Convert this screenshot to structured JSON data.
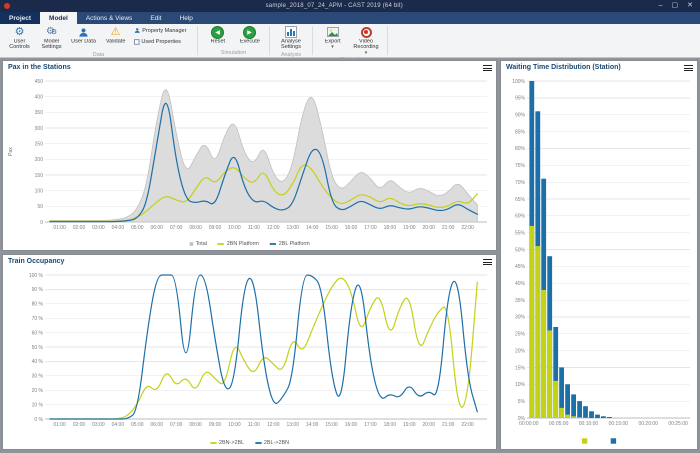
{
  "window": {
    "title": "sample_2018_07_24_APM - CAST 2019 (64 bit)",
    "minimize": "–",
    "maximize": "▢",
    "close": "✕"
  },
  "ribbon": {
    "tabs": {
      "project": "Project",
      "model": "Model",
      "actions_views": "Actions & Views",
      "edit": "Edit",
      "help": "Help"
    },
    "buttons": {
      "user_controls": "User Controls",
      "model_settings": "Model Settings",
      "user_data": "User Data",
      "validate": "Validate",
      "property_manager": "Property Manager",
      "used_properties": "Used Properties",
      "reset": "Reset",
      "execute": "Execute",
      "analyse_settings": "Analyse Settings",
      "export": "Export",
      "video_recording": "Video Recording"
    },
    "group_labels": {
      "data": "Data",
      "simulation": "Simulation",
      "analysis": "Analysis",
      "record": "Record"
    }
  },
  "colors": {
    "yellow_series": "#c3d117",
    "blue_series": "#1d6fa8",
    "total_fill": "#dcdcdc",
    "total_stroke": "#c0c0c0",
    "titlebar": "#1b2a4a",
    "accent_green": "#2d9e44",
    "record_red": "#c23b2c"
  },
  "time_ticks": [
    [
      1,
      "01:00"
    ],
    [
      2,
      "02:00"
    ],
    [
      3,
      "03:00"
    ],
    [
      4,
      "04:00"
    ],
    [
      5,
      "05:00"
    ],
    [
      6,
      "06:00"
    ],
    [
      7,
      "07:00"
    ],
    [
      8,
      "08:00"
    ],
    [
      9,
      "09:00"
    ],
    [
      10,
      "10:00"
    ],
    [
      11,
      "11:00"
    ],
    [
      12,
      "12:00"
    ],
    [
      13,
      "13:00"
    ],
    [
      14,
      "14:00"
    ],
    [
      15,
      "15:00"
    ],
    [
      16,
      "16:00"
    ],
    [
      17,
      "17:00"
    ],
    [
      18,
      "18:00"
    ],
    [
      19,
      "19:00"
    ],
    [
      20,
      "20:00"
    ],
    [
      21,
      "21:00"
    ],
    [
      22,
      "22:00"
    ]
  ],
  "chart_data": [
    {
      "type": "area-line",
      "title": "Pax in the Stations",
      "ylabel": "Pax",
      "ylim": [
        0,
        450
      ],
      "ystep": 50,
      "ysuffix": "",
      "x_start": 0.5,
      "x_step": 0.5,
      "xmin": 0.25,
      "xmax": 23,
      "xticks": "time_ticks",
      "grid": true,
      "legend_position": "bottom",
      "series": [
        {
          "name": "Total",
          "type": "area",
          "color": "#dcdcdc",
          "stroke": "#c0c0c0",
          "values": [
            5,
            5,
            5,
            5,
            5,
            5,
            5,
            8,
            15,
            40,
            120,
            330,
            460,
            280,
            150,
            210,
            260,
            180,
            280,
            330,
            220,
            180,
            250,
            150,
            120,
            180,
            350,
            420,
            300,
            140,
            100,
            130,
            165,
            140,
            100,
            140,
            110,
            90,
            110,
            100,
            80,
            95,
            130,
            90,
            55
          ]
        },
        {
          "name": "2BN Platform",
          "type": "line",
          "color": "#c3d117",
          "values": [
            2,
            2,
            2,
            2,
            2,
            2,
            2,
            3,
            5,
            15,
            35,
            65,
            85,
            70,
            60,
            105,
            150,
            120,
            160,
            180,
            140,
            120,
            170,
            100,
            80,
            120,
            190,
            170,
            115,
            75,
            55,
            70,
            90,
            80,
            60,
            80,
            60,
            50,
            60,
            55,
            45,
            50,
            70,
            55,
            90
          ]
        },
        {
          "name": "2BL Platform",
          "type": "line",
          "color": "#1d6fa8",
          "values": [
            1,
            1,
            1,
            1,
            1,
            1,
            1,
            2,
            4,
            10,
            60,
            250,
            430,
            190,
            70,
            60,
            70,
            50,
            150,
            230,
            110,
            60,
            70,
            45,
            35,
            55,
            150,
            240,
            220,
            60,
            35,
            50,
            70,
            55,
            40,
            55,
            45,
            40,
            50,
            45,
            35,
            40,
            60,
            40,
            25
          ]
        }
      ]
    },
    {
      "type": "line",
      "title": "Train Occupancy",
      "ylabel": "",
      "ylim": [
        0,
        100
      ],
      "ystep": 10,
      "ysuffix": " %",
      "x_start": 0.5,
      "x_step": 0.5,
      "xmin": 0.25,
      "xmax": 23,
      "xticks": "time_ticks",
      "grid": true,
      "legend_position": "bottom",
      "series": [
        {
          "name": "2BN->2BL",
          "type": "line",
          "color": "#c3d117",
          "values": [
            0,
            0,
            0,
            0,
            0,
            0,
            0,
            0,
            2,
            10,
            25,
            18,
            35,
            22,
            30,
            18,
            35,
            28,
            22,
            55,
            40,
            30,
            45,
            38,
            32,
            58,
            45,
            62,
            78,
            92,
            100,
            90,
            58,
            78,
            88,
            55,
            78,
            88,
            45,
            62,
            75,
            80,
            5,
            12,
            95
          ]
        },
        {
          "name": "2BL->2BN",
          "type": "line",
          "color": "#1d6fa8",
          "values": [
            0,
            0,
            0,
            0,
            0,
            0,
            0,
            0,
            0,
            5,
            60,
            100,
            100,
            100,
            28,
            100,
            100,
            55,
            18,
            25,
            95,
            100,
            38,
            8,
            15,
            28,
            100,
            100,
            92,
            28,
            8,
            82,
            100,
            38,
            12,
            18,
            14,
            25,
            14,
            20,
            14,
            90,
            100,
            28,
            5
          ]
        }
      ]
    },
    {
      "type": "bar",
      "title": "Waiting Time Distribution (Station)",
      "ylabel": "",
      "ylim": [
        0,
        100
      ],
      "ystep": 5,
      "ysuffix": "%",
      "bin_start_minutes": 0,
      "bin_width_minutes": 1,
      "xmin": -0.3,
      "xmax": 27,
      "xticks": [
        [
          0,
          "00:00:00"
        ],
        [
          5,
          "00:05:00"
        ],
        [
          10,
          "00:10:00"
        ],
        [
          15,
          "00:15:00"
        ],
        [
          20,
          "00:20:00"
        ],
        [
          25,
          "00:25:00"
        ]
      ],
      "grid": true,
      "legend_swatches_only": true,
      "series": [
        {
          "name": "2BL Platform",
          "color": "#1d6fa8",
          "values": [
            100,
            91,
            71,
            48,
            27,
            15,
            10,
            7,
            5,
            3.5,
            2,
            1,
            0.5,
            0.3
          ]
        },
        {
          "name": "2BN Platform",
          "color": "#c3d117",
          "values": [
            57,
            51,
            38,
            26,
            11,
            3,
            1,
            0.5,
            0.2,
            0.1,
            0,
            0,
            0,
            0
          ]
        }
      ]
    }
  ]
}
